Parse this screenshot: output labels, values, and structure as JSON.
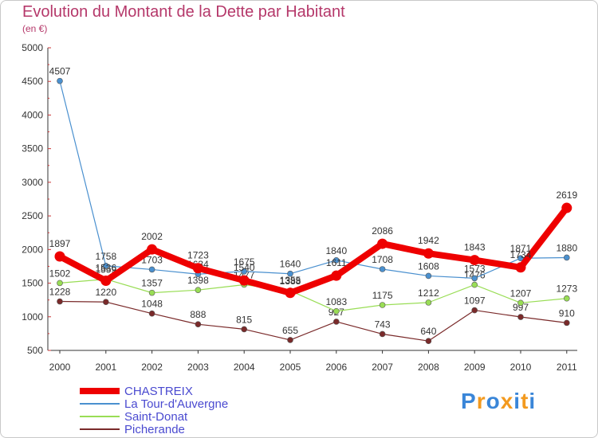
{
  "chart_data": {
    "type": "line",
    "title": "Evolution du Montant de la Dette par Habitant",
    "subtitle": "(en €)",
    "categories": [
      "2000",
      "2001",
      "2002",
      "2003",
      "2004",
      "2005",
      "2006",
      "2007",
      "2008",
      "2009",
      "2010",
      "2011"
    ],
    "ylim": [
      500,
      5000
    ],
    "yticks": [
      500,
      1000,
      1500,
      2000,
      2500,
      3000,
      3500,
      4000,
      4500,
      5000
    ],
    "grid": false,
    "legend_position": "bottom-left",
    "series": [
      {
        "name": "CHASTREIX",
        "color": "#ee0000",
        "values": [
          1897,
          1536,
          2002,
          1723,
          1540,
          1355,
          1611,
          2086,
          1942,
          1843,
          1734,
          2619
        ]
      },
      {
        "name": "La Tour-d'Auvergne",
        "color": "#4a90cf",
        "values": [
          4507,
          1758,
          1703,
          1634,
          1675,
          1640,
          1840,
          1708,
          1608,
          1573,
          1871,
          1880
        ]
      },
      {
        "name": "Saint-Donat",
        "color": "#99dd55",
        "values": [
          1502,
          1559,
          1357,
          1398,
          1477,
          1388,
          1083,
          1175,
          1212,
          1476,
          1207,
          1273
        ]
      },
      {
        "name": "Picherande",
        "color": "#7a2a2a",
        "values": [
          1228,
          1220,
          1048,
          888,
          815,
          655,
          927,
          743,
          640,
          1097,
          997,
          910
        ]
      }
    ]
  },
  "logo": {
    "letters": [
      "P",
      "r",
      "o",
      "x",
      "i",
      "t",
      "i"
    ],
    "colors": [
      "#3a86d8",
      "#f39a1f",
      "#3a86d8",
      "#f39a1f",
      "#3a86d8",
      "#f39a1f",
      "#3a86d8"
    ]
  }
}
